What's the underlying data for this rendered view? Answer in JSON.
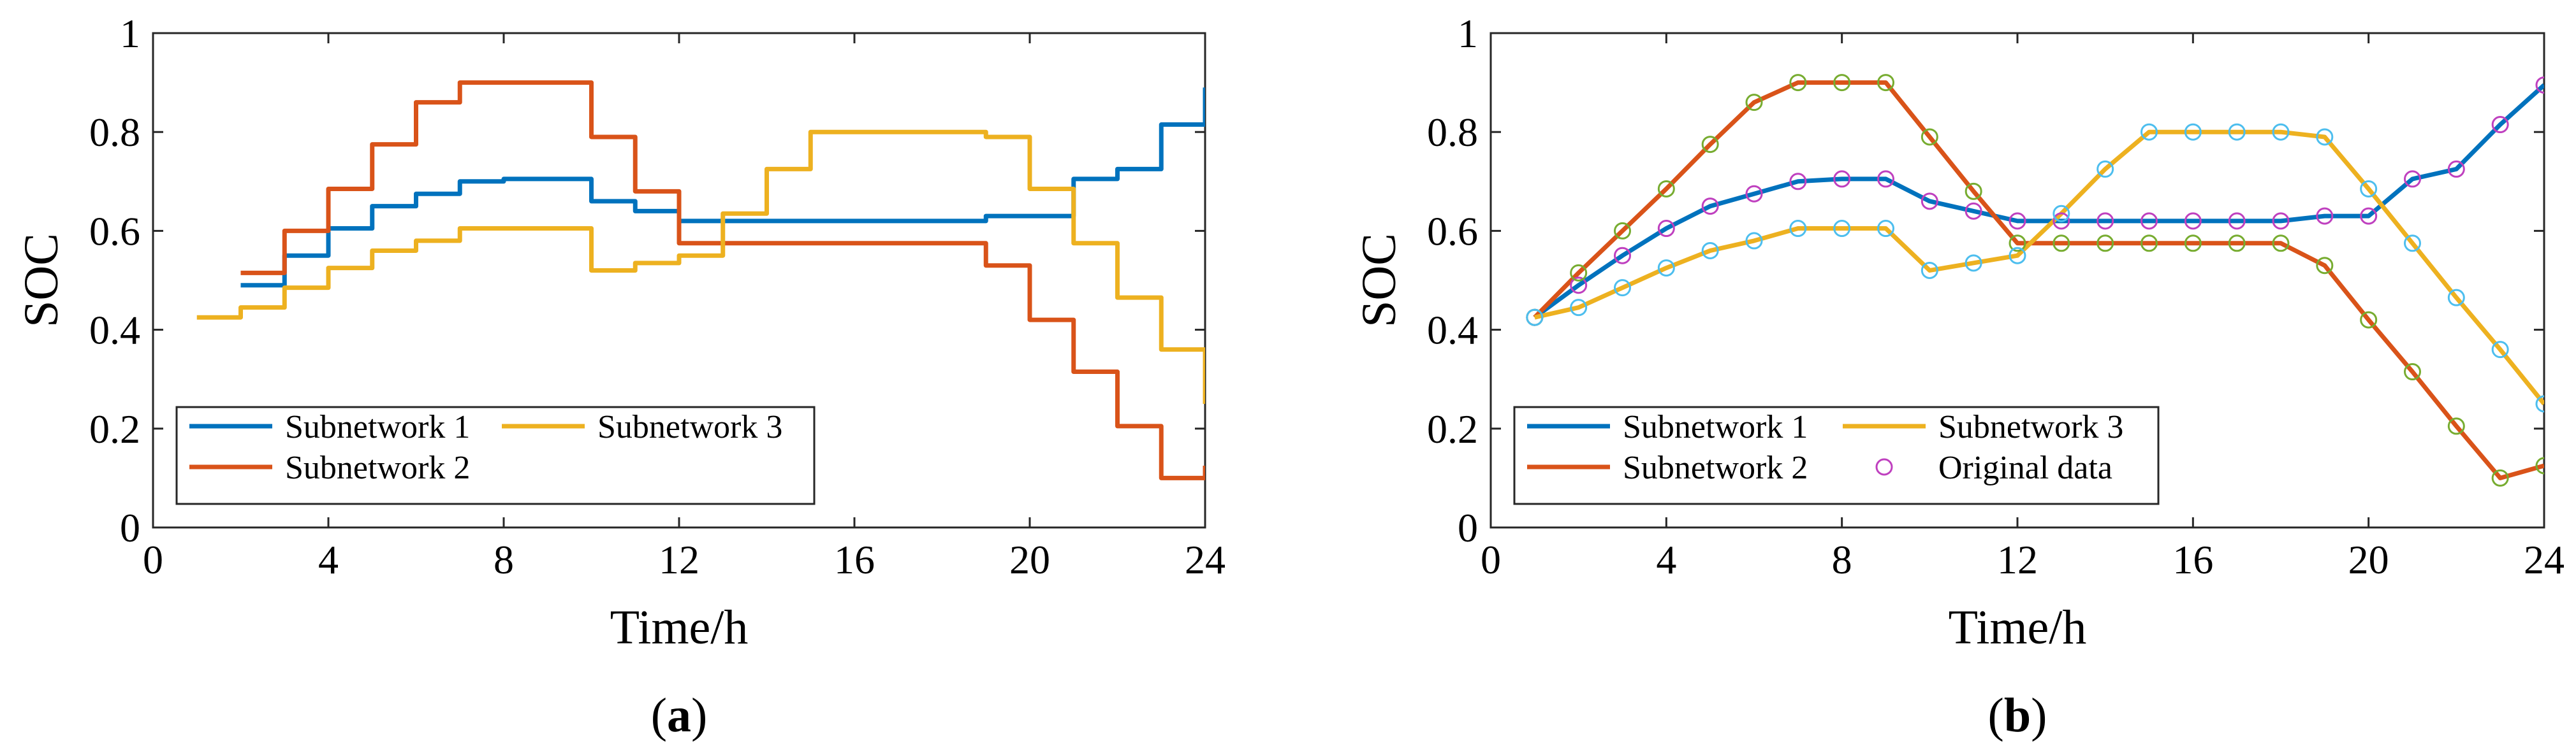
{
  "chart_data": [
    {
      "type": "line",
      "subtype": "step",
      "panel_label": "a",
      "xlabel": "Time/h",
      "ylabel": "SOC",
      "xlim": [
        0,
        24
      ],
      "ylim": [
        0,
        1
      ],
      "xticks": [
        "0",
        "4",
        "8",
        "12",
        "16",
        "20",
        "24"
      ],
      "yticks": [
        "0",
        "0.2",
        "0.4",
        "0.6",
        "0.8",
        "1"
      ],
      "legend": {
        "placement": "bottom-left"
      },
      "series": [
        {
          "name": "Subnetwork 1",
          "color": "#0072BD",
          "x": [
            2,
            3,
            4,
            5,
            6,
            7,
            8,
            9,
            10,
            11,
            12,
            13,
            14,
            15,
            16,
            17,
            18,
            19,
            20,
            21,
            22,
            23,
            24
          ],
          "y": [
            0.49,
            0.55,
            0.605,
            0.65,
            0.675,
            0.7,
            0.705,
            0.705,
            0.66,
            0.64,
            0.62,
            0.62,
            0.62,
            0.62,
            0.62,
            0.62,
            0.62,
            0.63,
            0.63,
            0.705,
            0.725,
            0.815,
            0.89
          ]
        },
        {
          "name": "Subnetwork 2",
          "color": "#D95319",
          "x": [
            2,
            3,
            4,
            5,
            6,
            7,
            8,
            9,
            10,
            11,
            12,
            13,
            14,
            15,
            16,
            17,
            18,
            19,
            20,
            21,
            22,
            23,
            24
          ],
          "y": [
            0.515,
            0.6,
            0.685,
            0.775,
            0.86,
            0.9,
            0.9,
            0.9,
            0.79,
            0.68,
            0.575,
            0.575,
            0.575,
            0.575,
            0.575,
            0.575,
            0.575,
            0.53,
            0.42,
            0.315,
            0.205,
            0.1,
            0.125
          ]
        },
        {
          "name": "Subnetwork 3",
          "color": "#EDB120",
          "x": [
            1,
            2,
            3,
            4,
            5,
            6,
            7,
            8,
            9,
            10,
            11,
            12,
            13,
            14,
            15,
            16,
            17,
            18,
            19,
            20,
            21,
            22,
            23,
            24
          ],
          "y": [
            0.425,
            0.445,
            0.485,
            0.525,
            0.56,
            0.58,
            0.605,
            0.605,
            0.605,
            0.52,
            0.535,
            0.55,
            0.635,
            0.725,
            0.8,
            0.8,
            0.8,
            0.8,
            0.79,
            0.685,
            0.575,
            0.465,
            0.36,
            0.25
          ]
        }
      ]
    },
    {
      "type": "line",
      "panel_label": "b",
      "xlabel": "Time/h",
      "ylabel": "SOC",
      "xlim": [
        0,
        24
      ],
      "ylim": [
        0,
        1
      ],
      "xticks": [
        "0",
        "4",
        "8",
        "12",
        "16",
        "20",
        "24"
      ],
      "yticks": [
        "0",
        "0.2",
        "0.4",
        "0.6",
        "0.8",
        "1"
      ],
      "legend": {
        "placement": "bottom-left"
      },
      "original_data_label": "Original data",
      "series": [
        {
          "name": "Subnetwork 1",
          "color": "#0072BD",
          "marker_color": "#BF40BF",
          "x": [
            1,
            2,
            3,
            4,
            5,
            6,
            7,
            8,
            9,
            10,
            11,
            12,
            13,
            14,
            15,
            16,
            17,
            18,
            19,
            20,
            21,
            22,
            23,
            24
          ],
          "y": [
            0.425,
            0.49,
            0.55,
            0.605,
            0.65,
            0.675,
            0.7,
            0.705,
            0.705,
            0.66,
            0.64,
            0.62,
            0.62,
            0.62,
            0.62,
            0.62,
            0.62,
            0.62,
            0.63,
            0.63,
            0.705,
            0.725,
            0.815,
            0.895
          ]
        },
        {
          "name": "Subnetwork 2",
          "color": "#D95319",
          "marker_color": "#77AC30",
          "x": [
            1,
            2,
            3,
            4,
            5,
            6,
            7,
            8,
            9,
            10,
            11,
            12,
            13,
            14,
            15,
            16,
            17,
            18,
            19,
            20,
            21,
            22,
            23,
            24
          ],
          "y": [
            0.425,
            0.515,
            0.6,
            0.685,
            0.775,
            0.86,
            0.9,
            0.9,
            0.9,
            0.79,
            0.68,
            0.575,
            0.575,
            0.575,
            0.575,
            0.575,
            0.575,
            0.575,
            0.53,
            0.42,
            0.315,
            0.205,
            0.1,
            0.125
          ]
        },
        {
          "name": "Subnetwork 3",
          "color": "#EDB120",
          "marker_color": "#4DBEEE",
          "x": [
            1,
            2,
            3,
            4,
            5,
            6,
            7,
            8,
            9,
            10,
            11,
            12,
            13,
            14,
            15,
            16,
            17,
            18,
            19,
            20,
            21,
            22,
            23,
            24
          ],
          "y": [
            0.425,
            0.445,
            0.485,
            0.525,
            0.56,
            0.58,
            0.605,
            0.605,
            0.605,
            0.52,
            0.535,
            0.55,
            0.635,
            0.725,
            0.8,
            0.8,
            0.8,
            0.8,
            0.79,
            0.685,
            0.575,
            0.465,
            0.36,
            0.25
          ]
        }
      ]
    }
  ]
}
